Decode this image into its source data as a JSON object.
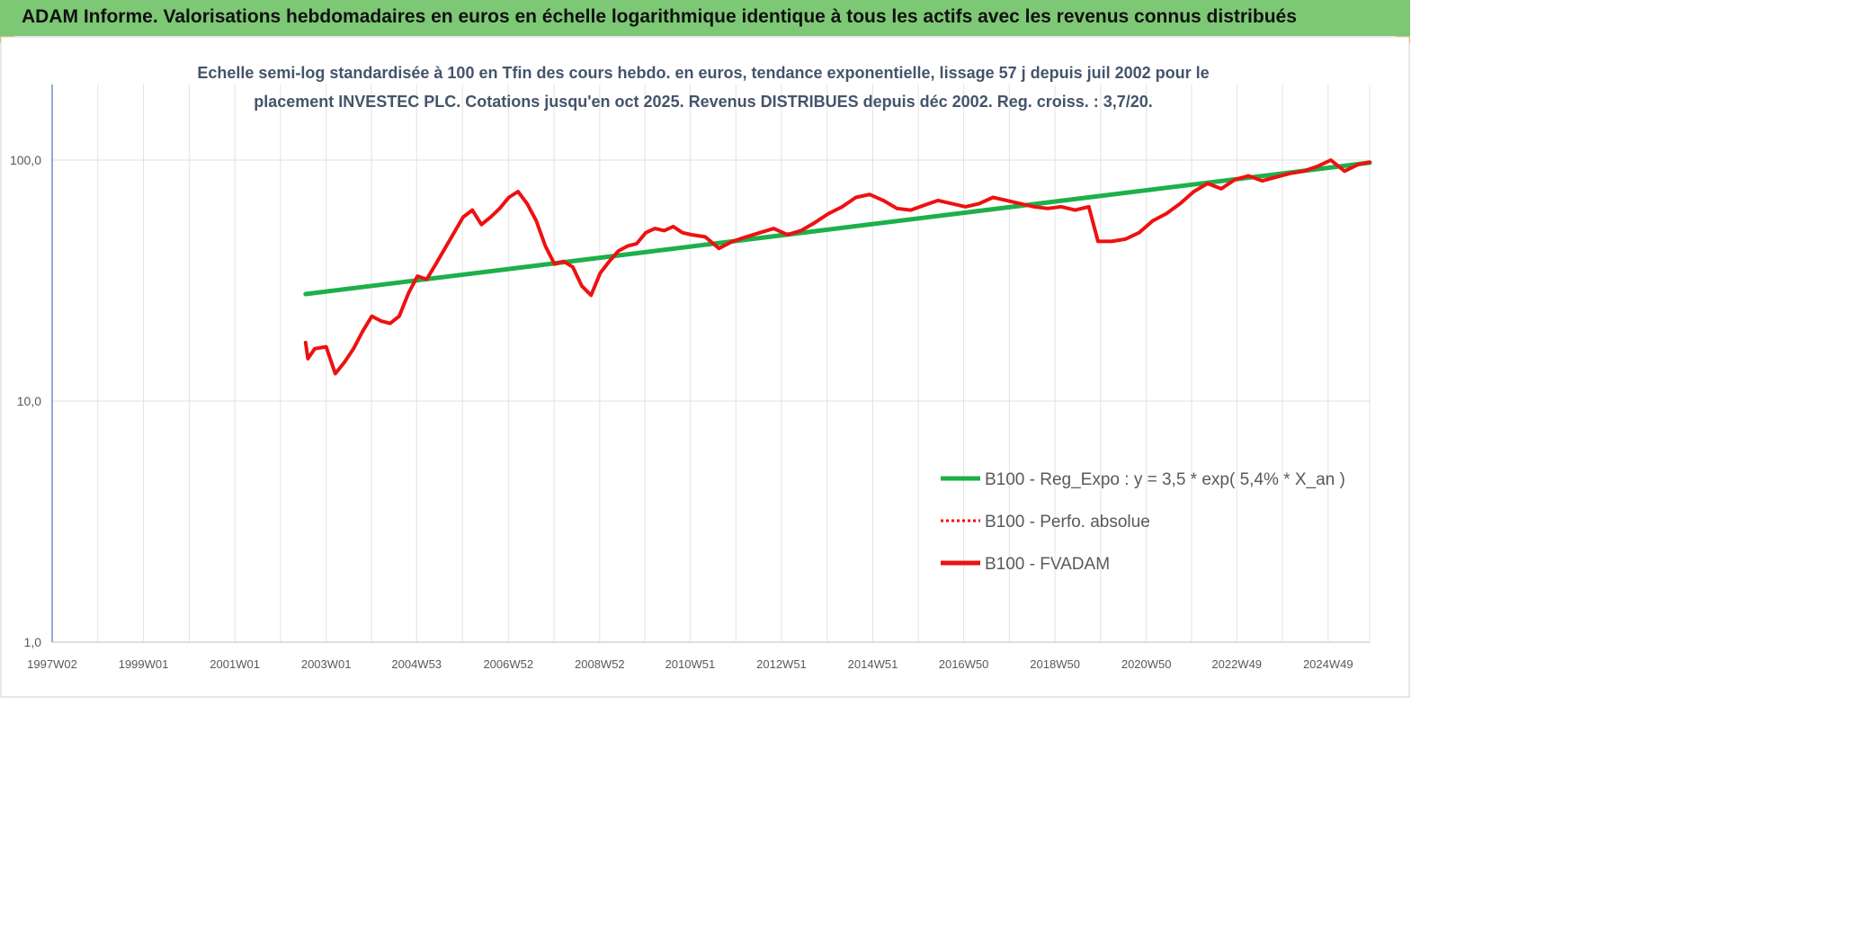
{
  "banner": {
    "title": "ADAM Informe. Valorisations hebdomadaires en euros en échelle logarithmique identique à tous les actifs avec les revenus connus distribués"
  },
  "colors": {
    "banner_bg": "#7dc874",
    "accent_corner": "#e8b400",
    "trend": "#1db04a",
    "perf": "#ff0000",
    "fvadam": "#ee1111"
  },
  "chart_data": {
    "type": "line",
    "title_lines": [
      "Echelle semi-log standardisée à 100 en Tfin des cours hebdo. en euros, tendance exponentielle, lissage 57 j depuis juil 2002 pour le",
      "placement INVESTEC PLC. Cotations jusqu'en oct 2025. Revenus DISTRIBUES depuis déc 2002. Reg. croiss. : 3,7/20."
    ],
    "y_scale": "log",
    "ylim": [
      1,
      100
    ],
    "xlim": [
      1997.0,
      2025.85
    ],
    "y_ticks": [
      {
        "value": 100,
        "label": "100,0"
      },
      {
        "value": 10,
        "label": "10,0"
      },
      {
        "value": 1,
        "label": "1,0"
      }
    ],
    "x_ticks": [
      {
        "x": 1997.0,
        "label": "1997W02"
      },
      {
        "x": 1999.0,
        "label": "1999W01"
      },
      {
        "x": 2001.0,
        "label": "2001W01"
      },
      {
        "x": 2003.0,
        "label": "2003W01"
      },
      {
        "x": 2004.98,
        "label": "2004W53"
      },
      {
        "x": 2006.99,
        "label": "2006W52"
      },
      {
        "x": 2008.99,
        "label": "2008W52"
      },
      {
        "x": 2010.97,
        "label": "2010W51"
      },
      {
        "x": 2012.97,
        "label": "2012W51"
      },
      {
        "x": 2014.97,
        "label": "2014W51"
      },
      {
        "x": 2016.96,
        "label": "2016W50"
      },
      {
        "x": 2018.96,
        "label": "2018W50"
      },
      {
        "x": 2020.96,
        "label": "2020W50"
      },
      {
        "x": 2022.94,
        "label": "2022W49"
      },
      {
        "x": 2024.94,
        "label": "2024W49"
      }
    ],
    "legend_position": "bottom-right",
    "series": [
      {
        "name": "B100 - Reg_Expo : y = 3,5 * exp( 5,4% *  X_an )",
        "style": "solid-thick",
        "color": "#1db04a",
        "x": [
          2002.55,
          2025.85
        ],
        "y": [
          27.8,
          97.5
        ]
      },
      {
        "name": "B100 - Perfo. absolue",
        "style": "dotted",
        "color": "#ff0000",
        "x": [
          2002.55,
          2002.6,
          2002.75,
          2003.0,
          2003.2,
          2003.4,
          2003.6,
          2003.8,
          2004.0,
          2004.2,
          2004.4,
          2004.6,
          2004.8,
          2005.0,
          2005.2,
          2005.4,
          2005.6,
          2005.8,
          2006.0,
          2006.2,
          2006.4,
          2006.6,
          2006.8,
          2007.0,
          2007.2,
          2007.4,
          2007.6,
          2007.8,
          2008.0,
          2008.2,
          2008.4,
          2008.6,
          2008.8,
          2009.0,
          2009.2,
          2009.4,
          2009.6,
          2009.8,
          2010.0,
          2010.2,
          2010.4,
          2010.6,
          2010.8,
          2011.0,
          2011.3,
          2011.6,
          2011.9,
          2012.2,
          2012.5,
          2012.8,
          2013.1,
          2013.4,
          2013.7,
          2014.0,
          2014.3,
          2014.6,
          2014.9,
          2015.2,
          2015.5,
          2015.8,
          2016.1,
          2016.4,
          2016.7,
          2017.0,
          2017.3,
          2017.6,
          2017.9,
          2018.2,
          2018.5,
          2018.8,
          2019.1,
          2019.4,
          2019.7,
          2019.9,
          2020.2,
          2020.5,
          2020.8,
          2021.1,
          2021.4,
          2021.7,
          2022.0,
          2022.3,
          2022.6,
          2022.9,
          2023.2,
          2023.5,
          2023.8,
          2024.1,
          2024.4,
          2024.7,
          2025.0,
          2025.3,
          2025.6,
          2025.85
        ],
        "y": [
          17.5,
          15.0,
          16.5,
          16.8,
          13.0,
          14.5,
          16.5,
          19.5,
          22.5,
          21.5,
          21.0,
          22.5,
          28.0,
          33.0,
          32.0,
          37.0,
          43.0,
          50.0,
          58.0,
          62.0,
          54.0,
          58.0,
          63.0,
          70.0,
          74.0,
          66.0,
          56.0,
          44.0,
          37.0,
          38.0,
          36.0,
          30.0,
          27.5,
          34.0,
          38.0,
          42.0,
          44.0,
          45.0,
          50.0,
          52.0,
          51.0,
          53.0,
          50.0,
          49.0,
          48.0,
          43.0,
          46.0,
          48.0,
          50.0,
          52.0,
          49.0,
          51.0,
          55.0,
          60.0,
          64.0,
          70.0,
          72.0,
          68.0,
          63.0,
          62.0,
          65.0,
          68.0,
          66.0,
          64.0,
          66.0,
          70.0,
          68.0,
          66.0,
          64.0,
          63.0,
          64.0,
          62.0,
          64.0,
          46.0,
          46.0,
          47.0,
          50.0,
          56.0,
          60.0,
          66.0,
          74.0,
          80.0,
          76.0,
          83.0,
          86.0,
          82.0,
          85.0,
          88.0,
          90.0,
          94.0,
          100.0,
          90.0,
          96.0,
          98.0
        ]
      },
      {
        "name": "B100 - FVADAM",
        "style": "solid-thick",
        "color": "#ee1111",
        "x": [
          2002.55,
          2002.6,
          2002.75,
          2003.0,
          2003.2,
          2003.4,
          2003.6,
          2003.8,
          2004.0,
          2004.2,
          2004.4,
          2004.6,
          2004.8,
          2005.0,
          2005.2,
          2005.4,
          2005.6,
          2005.8,
          2006.0,
          2006.2,
          2006.4,
          2006.6,
          2006.8,
          2007.0,
          2007.2,
          2007.4,
          2007.6,
          2007.8,
          2008.0,
          2008.2,
          2008.4,
          2008.6,
          2008.8,
          2009.0,
          2009.2,
          2009.4,
          2009.6,
          2009.8,
          2010.0,
          2010.2,
          2010.4,
          2010.6,
          2010.8,
          2011.0,
          2011.3,
          2011.6,
          2011.9,
          2012.2,
          2012.5,
          2012.8,
          2013.1,
          2013.4,
          2013.7,
          2014.0,
          2014.3,
          2014.6,
          2014.9,
          2015.2,
          2015.5,
          2015.8,
          2016.1,
          2016.4,
          2016.7,
          2017.0,
          2017.3,
          2017.6,
          2017.9,
          2018.2,
          2018.5,
          2018.8,
          2019.1,
          2019.4,
          2019.7,
          2019.9,
          2020.2,
          2020.5,
          2020.8,
          2021.1,
          2021.4,
          2021.7,
          2022.0,
          2022.3,
          2022.6,
          2022.9,
          2023.2,
          2023.5,
          2023.8,
          2024.1,
          2024.4,
          2024.7,
          2025.0,
          2025.3,
          2025.6,
          2025.85
        ],
        "y": [
          17.5,
          15.0,
          16.5,
          16.8,
          13.0,
          14.5,
          16.5,
          19.5,
          22.5,
          21.5,
          21.0,
          22.5,
          28.0,
          33.0,
          32.0,
          37.0,
          43.0,
          50.0,
          58.0,
          62.0,
          54.0,
          58.0,
          63.0,
          70.0,
          74.0,
          66.0,
          56.0,
          44.0,
          37.0,
          38.0,
          36.0,
          30.0,
          27.5,
          34.0,
          38.0,
          42.0,
          44.0,
          45.0,
          50.0,
          52.0,
          51.0,
          53.0,
          50.0,
          49.0,
          48.0,
          43.0,
          46.0,
          48.0,
          50.0,
          52.0,
          49.0,
          51.0,
          55.0,
          60.0,
          64.0,
          70.0,
          72.0,
          68.0,
          63.0,
          62.0,
          65.0,
          68.0,
          66.0,
          64.0,
          66.0,
          70.0,
          68.0,
          66.0,
          64.0,
          63.0,
          64.0,
          62.0,
          64.0,
          46.0,
          46.0,
          47.0,
          50.0,
          56.0,
          60.0,
          66.0,
          74.0,
          80.0,
          76.0,
          83.0,
          86.0,
          82.0,
          85.0,
          88.0,
          90.0,
          94.0,
          100.0,
          90.0,
          96.0,
          98.0
        ]
      }
    ]
  }
}
